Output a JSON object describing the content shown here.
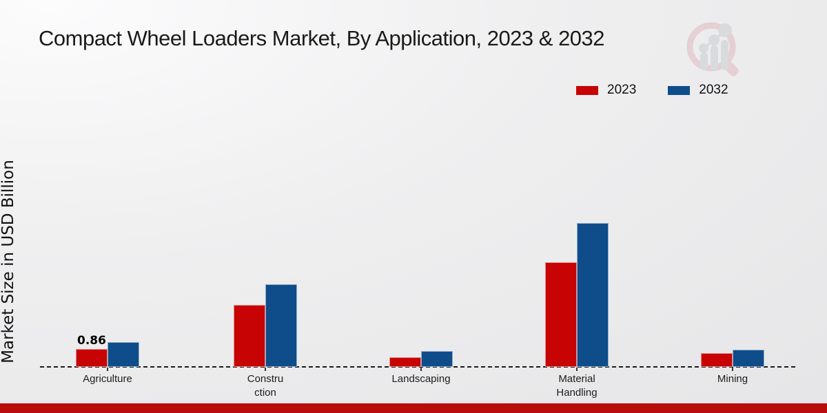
{
  "page": {
    "bottom_bar_color": "#b90c0c",
    "watermark_icon": "magnifier-bar-chart-logo",
    "watermark_ring_color": "#dfb4b9",
    "watermark_bar_color": "#c7c9cd"
  },
  "chart_data": {
    "type": "bar",
    "title": "Compact Wheel Loaders Market, By Application, 2023 & 2032",
    "xlabel": "",
    "ylabel": "Market Size in USD Billion",
    "categories": [
      "Agriculture",
      "Construction",
      "Landscaping",
      "Material Handling",
      "Mining"
    ],
    "tick_label_lines": [
      [
        "Agriculture"
      ],
      [
        "Constru",
        "ction"
      ],
      [
        "Landscaping"
      ],
      [
        "Material",
        "Handling"
      ],
      [
        "Mining"
      ]
    ],
    "series": [
      {
        "name": "2023",
        "color": "#c70303",
        "values": [
          0.86,
          3.0,
          0.47,
          5.1,
          0.67
        ]
      },
      {
        "name": "2032",
        "color": "#0f4d8a",
        "values": [
          1.2,
          4.0,
          0.77,
          7.0,
          0.85
        ]
      }
    ],
    "data_labels": [
      {
        "series": "2023",
        "category": "Agriculture",
        "text": "0.86"
      }
    ],
    "legend_position": "top-right",
    "grid": "off",
    "baseline": "dashed-zero-line",
    "y_axis_ticks": "none"
  }
}
